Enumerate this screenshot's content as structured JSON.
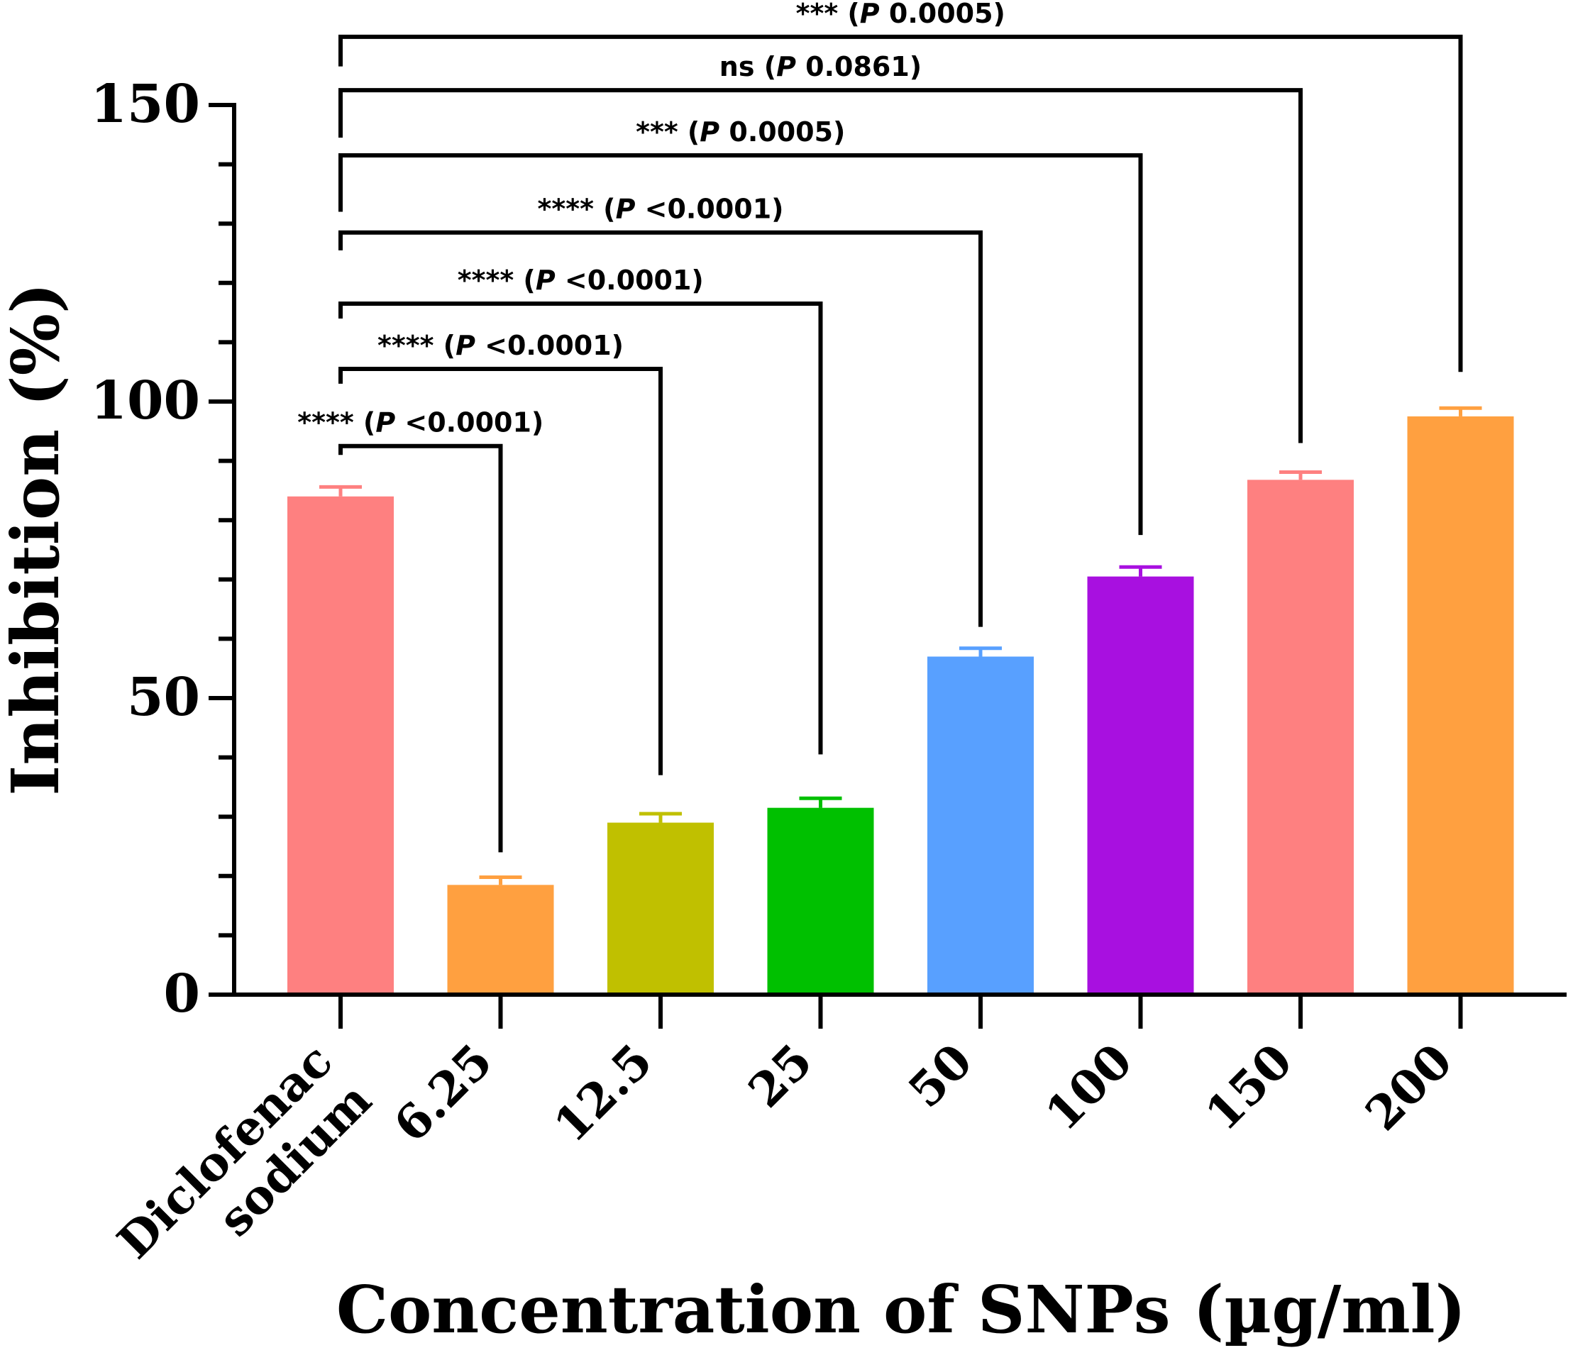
{
  "chart_data": {
    "type": "bar",
    "title": "",
    "xlabel": "Concentration of SNPs (µg/ml)",
    "ylabel": "Inhibition (%)",
    "ylim": [
      0,
      150
    ],
    "yticks": [
      "0",
      "50",
      "100",
      "150"
    ],
    "y_minor_step": 10,
    "grid": false,
    "legend": "none",
    "categories": [
      {
        "line1": "Diclofenac",
        "line2": "sodium"
      },
      {
        "line1": "6.25",
        "line2": ""
      },
      {
        "line1": "12.5",
        "line2": ""
      },
      {
        "line1": "25",
        "line2": ""
      },
      {
        "line1": "50",
        "line2": ""
      },
      {
        "line1": "100",
        "line2": ""
      },
      {
        "line1": "150",
        "line2": ""
      },
      {
        "line1": "200",
        "line2": ""
      }
    ],
    "values": [
      84,
      18.5,
      29,
      31.5,
      57,
      70.5,
      86.8,
      97.5
    ],
    "errors": [
      1.6,
      1.3,
      1.5,
      1.6,
      1.4,
      1.6,
      1.3,
      1.4
    ],
    "colors": [
      "#fe8080",
      "#ffa040",
      "#c0c000",
      "#00c000",
      "#58a0ff",
      "#a810e0",
      "#fe8080",
      "#ffa040"
    ],
    "comparisons": [
      {
        "from": 0,
        "to": 1,
        "bracket_y": 92.5,
        "left_drop": 91,
        "right_drop": 24,
        "stars": "****",
        "p": "<0.0001"
      },
      {
        "from": 0,
        "to": 2,
        "bracket_y": 105.5,
        "left_drop": 103,
        "right_drop": 37,
        "stars": "****",
        "p": "<0.0001"
      },
      {
        "from": 0,
        "to": 3,
        "bracket_y": 116.5,
        "left_drop": 114,
        "right_drop": 40.5,
        "stars": "****",
        "p": "<0.0001"
      },
      {
        "from": 0,
        "to": 4,
        "bracket_y": 128.5,
        "left_drop": 125.5,
        "right_drop": 62,
        "stars": "****",
        "p": "<0.0001"
      },
      {
        "from": 0,
        "to": 5,
        "bracket_y": 141.5,
        "left_drop": 132,
        "right_drop": 77.5,
        "stars": "***",
        "p": "0.0005"
      },
      {
        "from": 0,
        "to": 6,
        "bracket_y": 152.5,
        "left_drop": 144.5,
        "right_drop": 93,
        "stars": "ns",
        "p": "0.0861"
      },
      {
        "from": 0,
        "to": 7,
        "bracket_y": 161.5,
        "left_drop": 156.5,
        "right_drop": 105,
        "stars": "***",
        "p": "0.0005"
      }
    ]
  }
}
